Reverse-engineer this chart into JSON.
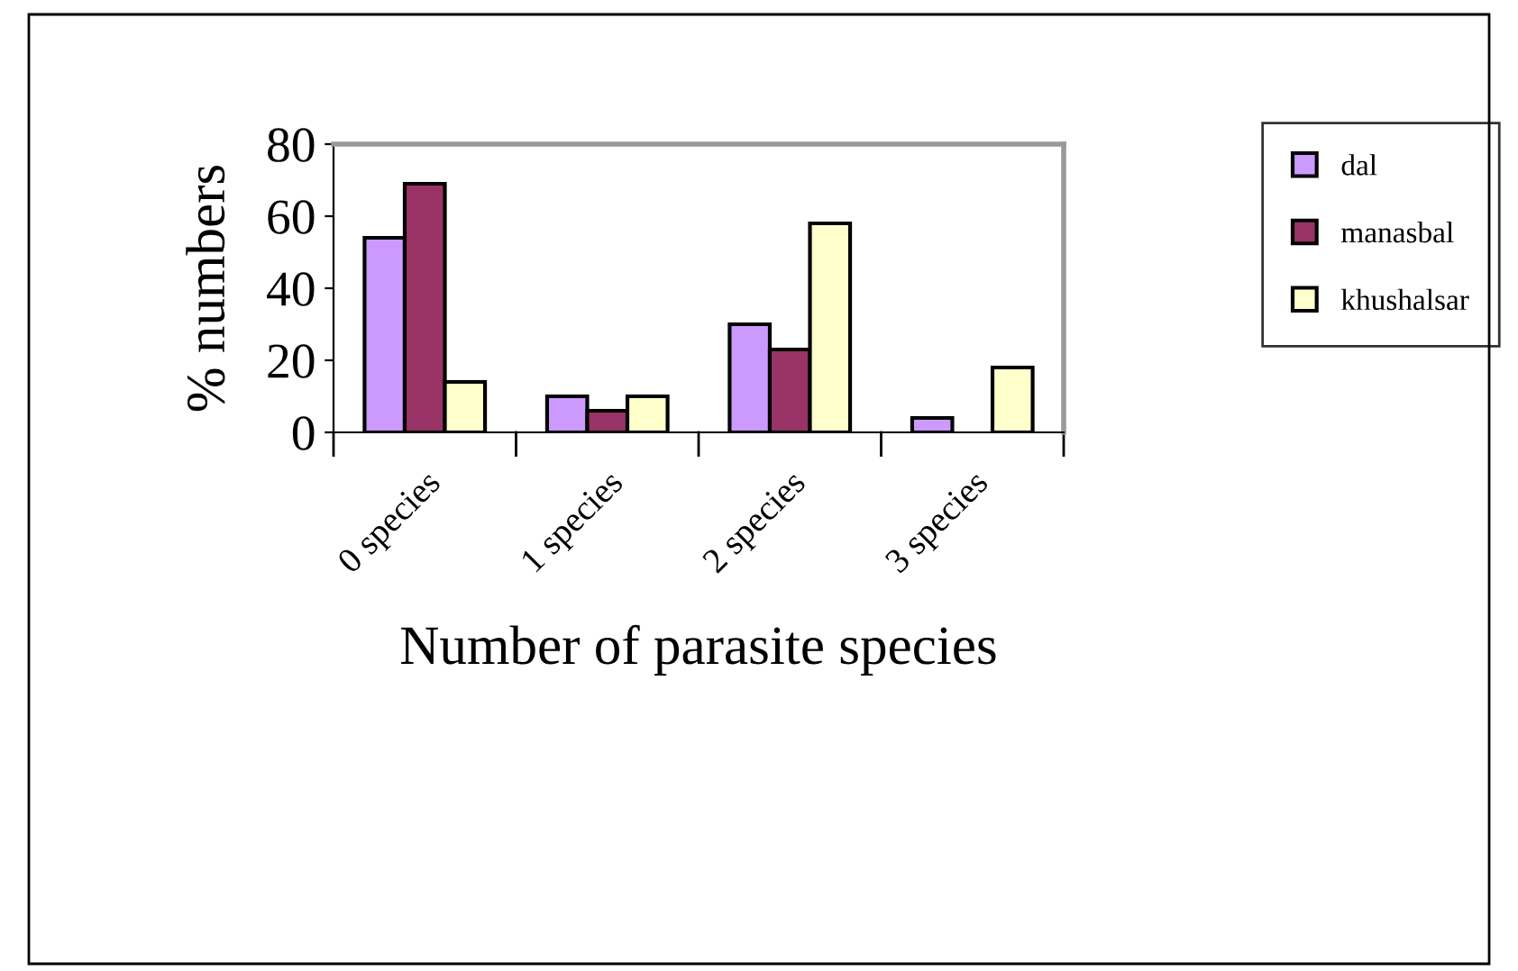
{
  "chart_data": {
    "type": "bar",
    "xlabel": "Number of parasite species",
    "ylabel": "% numbers",
    "categories": [
      "0 species",
      "1 species",
      "2 species",
      "3 species"
    ],
    "series": [
      {
        "name": "dal",
        "color": "#cc99ff",
        "values": [
          54,
          10,
          30,
          4
        ]
      },
      {
        "name": "manasbal",
        "color": "#993366",
        "values": [
          69,
          6,
          23,
          null
        ]
      },
      {
        "name": "khushalsar",
        "color": "#ffffcc",
        "values": [
          14,
          10,
          58,
          18
        ]
      }
    ],
    "ylim": [
      0,
      80
    ],
    "yticks": [
      0,
      20,
      40,
      60,
      80
    ],
    "grid": false,
    "legend": "right"
  }
}
